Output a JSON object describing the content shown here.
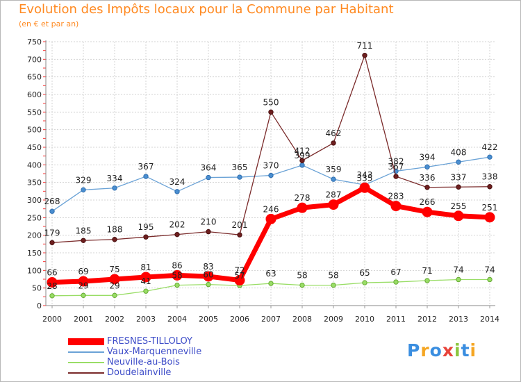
{
  "chart_data": {
    "type": "line",
    "title": "Evolution des Impôts locaux pour la Commune par Habitant",
    "subtitle": "(en € et par an)",
    "x": [
      "2000",
      "2001",
      "2002",
      "2003",
      "2004",
      "2005",
      "2006",
      "2007",
      "2008",
      "2009",
      "2010",
      "2011",
      "2012",
      "2013",
      "2014"
    ],
    "ylim": [
      0,
      750
    ],
    "y_ticks": [
      "0",
      "50",
      "100",
      "150",
      "200",
      "250",
      "300",
      "350",
      "400",
      "450",
      "500",
      "550",
      "600",
      "650",
      "700",
      "750"
    ],
    "grid": true,
    "legend_position": "bottom-left",
    "series": [
      {
        "name": "FRESNES-TILLOLOY",
        "color": "#ff0000",
        "values": [
          66,
          69,
          75,
          81,
          86,
          83,
          72,
          246,
          278,
          287,
          335,
          283,
          266,
          255,
          251
        ]
      },
      {
        "name": "Vaux-Marquenneville",
        "color": "#6aa2d6",
        "values": [
          268,
          329,
          334,
          367,
          324,
          364,
          365,
          370,
          399,
          359,
          343,
          382,
          394,
          408,
          422
        ]
      },
      {
        "name": "Neuville-au-Bois",
        "color": "#99dd66",
        "values": [
          28,
          29,
          29,
          41,
          58,
          60,
          57,
          63,
          58,
          58,
          65,
          67,
          71,
          74,
          74
        ]
      },
      {
        "name": "Doudelainville",
        "color": "#7a2a2a",
        "values": [
          179,
          185,
          188,
          195,
          202,
          210,
          201,
          550,
          412,
          462,
          711,
          367,
          336,
          337,
          338
        ]
      }
    ]
  },
  "legend": {
    "items": [
      {
        "label": "FRESNES-TILLOLOY",
        "color": "#ff0000"
      },
      {
        "label": "Vaux-Marquenneville",
        "color": "#6aa2d6"
      },
      {
        "label": "Neuville-au-Bois",
        "color": "#99dd66"
      },
      {
        "label": "Doudelainville",
        "color": "#7a2a2a"
      }
    ]
  },
  "logo": {
    "text": "Proxiti",
    "letters": [
      "P",
      "r",
      "o",
      "x",
      "i",
      "t",
      "i"
    ],
    "colors": [
      "#3a8ee0",
      "#f5a623",
      "#3a8ee0",
      "#e8433a",
      "#8cc63f",
      "#3a8ee0",
      "#f5a623"
    ]
  }
}
